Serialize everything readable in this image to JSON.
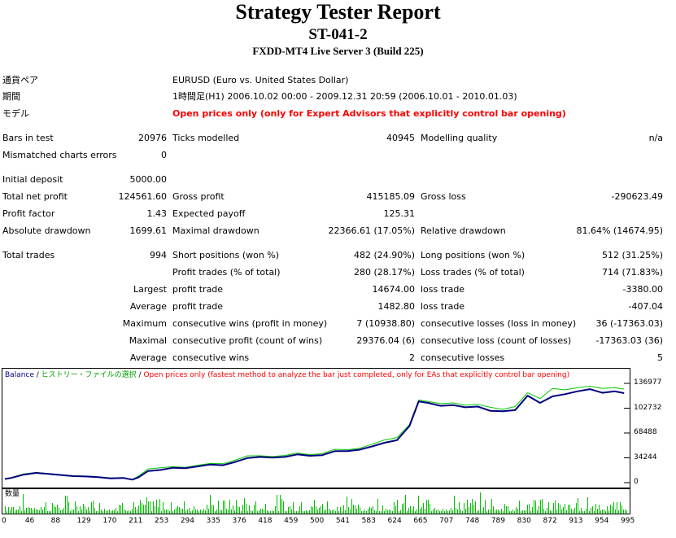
{
  "header": {
    "title": "Strategy Tester Report",
    "subtitle": "ST-041-2",
    "server": "FXDD-MT4 Live Server 3 (Build 225)"
  },
  "info": {
    "symbol_label": "通貨ペア",
    "symbol_value": "EURUSD (Euro vs. United States Dollar)",
    "period_label": "期間",
    "period_value": "1時間足(H1) 2006.10.02 00:00 - 2009.12.31 20:59 (2006.10.01 - 2010.01.03)",
    "model_label": "モデル",
    "model_value": "Open prices only (only for Expert Advisors that explicitly control bar opening)"
  },
  "stats": {
    "bars_label": "Bars in test",
    "bars_value": "20976",
    "ticks_label": "Ticks modelled",
    "ticks_value": "40945",
    "quality_label": "Modelling quality",
    "quality_value": "n/a",
    "mismatch_label": "Mismatched charts errors",
    "mismatch_value": "0",
    "deposit_label": "Initial deposit",
    "deposit_value": "5000.00",
    "net_label": "Total net profit",
    "net_value": "124561.60",
    "gross_profit_label": "Gross profit",
    "gross_profit_value": "415185.09",
    "gross_loss_label": "Gross loss",
    "gross_loss_value": "-290623.49",
    "pf_label": "Profit factor",
    "pf_value": "1.43",
    "payoff_label": "Expected payoff",
    "payoff_value": "125.31",
    "abs_dd_label": "Absolute drawdown",
    "abs_dd_value": "1699.61",
    "max_dd_label": "Maximal drawdown",
    "max_dd_value": "22366.61 (17.05%)",
    "rel_dd_label": "Relative drawdown",
    "rel_dd_value": "81.64% (14674.95)",
    "trades_label": "Total trades",
    "trades_value": "994",
    "short_label": "Short positions (won %)",
    "short_value": "482 (24.90%)",
    "long_label": "Long positions (won %)",
    "long_value": "512 (31.25%)",
    "profit_trades_label": "Profit trades (% of total)",
    "profit_trades_value": "280 (28.17%)",
    "loss_trades_label": "Loss trades (% of total)",
    "loss_trades_value": "714 (71.83%)",
    "largest_label": "Largest",
    "largest_profit_label": "profit trade",
    "largest_profit_value": "14674.00",
    "largest_loss_label": "loss trade",
    "largest_loss_value": "-3380.00",
    "average_label": "Average",
    "average_profit_label": "profit trade",
    "average_profit_value": "1482.80",
    "average_loss_label": "loss trade",
    "average_loss_value": "-407.04",
    "maximum_label": "Maximum",
    "max_cons_wins_label": "consecutive wins (profit in money)",
    "max_cons_wins_value": "7 (10938.80)",
    "max_cons_losses_label": "consecutive losses (loss in money)",
    "max_cons_losses_value": "36 (-17363.03)",
    "maximal_label": "Maximal",
    "maximal_profit_label": "consecutive profit (count of wins)",
    "maximal_profit_value": "29376.04 (6)",
    "maximal_loss_label": "consecutive loss (count of losses)",
    "maximal_loss_value": "-17363.03 (36)",
    "average2_label": "Average",
    "avg_cons_wins_label": "consecutive wins",
    "avg_cons_wins_value": "2",
    "avg_cons_losses_label": "consecutive losses",
    "avg_cons_losses_value": "5"
  },
  "chart_legend": {
    "balance": "Balance",
    "sep1": " / ",
    "history": "ヒストリー・ファイルの選択",
    "sep2": " / ",
    "mode": "Open prices only (fastest method to analyze the bar just completed, only for EAs that explicitly control bar opening)"
  },
  "volume_label": "数量",
  "colors": {
    "balance": "#00007f",
    "equity": "#00c800",
    "volume": "#00c000",
    "red": "#ff0000"
  },
  "chart_data": {
    "type": "line",
    "ylim": [
      0,
      136977
    ],
    "y_ticks": [
      "136977",
      "102732",
      "68488",
      "34244",
      "0"
    ],
    "x_ticks": [
      "0",
      "46",
      "88",
      "129",
      "170",
      "211",
      "253",
      "294",
      "335",
      "376",
      "418",
      "459",
      "500",
      "541",
      "583",
      "624",
      "665",
      "707",
      "748",
      "789",
      "830",
      "872",
      "913",
      "954",
      "995"
    ],
    "series": [
      {
        "name": "Balance",
        "x": [
          0,
          10,
          30,
          50,
          70,
          90,
          110,
          130,
          150,
          170,
          190,
          205,
          215,
          230,
          250,
          270,
          290,
          310,
          330,
          350,
          370,
          390,
          410,
          430,
          450,
          470,
          490,
          510,
          530,
          550,
          570,
          590,
          610,
          630,
          650,
          665,
          680,
          700,
          720,
          740,
          760,
          780,
          800,
          820,
          840,
          860,
          880,
          900,
          920,
          940,
          960,
          980,
          995
        ],
        "y": [
          5000,
          6500,
          11000,
          13500,
          12000,
          10500,
          9000,
          8500,
          7500,
          6000,
          6500,
          4200,
          7500,
          16000,
          17500,
          20500,
          20000,
          22500,
          25000,
          24000,
          28500,
          34000,
          35500,
          34500,
          35500,
          39000,
          37000,
          38000,
          43500,
          43500,
          45500,
          50000,
          55000,
          58500,
          78000,
          112000,
          110000,
          106000,
          107000,
          104000,
          105000,
          99000,
          98500,
          100000,
          120000,
          110000,
          119000,
          122000,
          126000,
          129000,
          124000,
          126000,
          123500
        ]
      },
      {
        "name": "Equity",
        "x": [
          0,
          10,
          30,
          50,
          70,
          90,
          110,
          130,
          150,
          170,
          190,
          205,
          215,
          230,
          250,
          270,
          290,
          310,
          330,
          350,
          370,
          390,
          410,
          430,
          450,
          470,
          490,
          510,
          530,
          550,
          570,
          590,
          610,
          630,
          650,
          665,
          680,
          700,
          720,
          740,
          760,
          780,
          800,
          820,
          840,
          860,
          880,
          900,
          920,
          940,
          960,
          980,
          995
        ],
        "y": [
          5000,
          7000,
          12000,
          14000,
          12500,
          11000,
          9500,
          9000,
          8000,
          6500,
          7000,
          4500,
          9000,
          19000,
          20500,
          22000,
          21000,
          24000,
          26500,
          26000,
          31000,
          37000,
          37000,
          36000,
          37500,
          41000,
          38500,
          40000,
          46000,
          45500,
          47500,
          53000,
          59000,
          62000,
          80000,
          114000,
          112000,
          109000,
          110000,
          107000,
          108000,
          104000,
          101000,
          105000,
          124000,
          116000,
          130000,
          128000,
          131000,
          133000,
          130000,
          131000,
          129000
        ]
      }
    ]
  }
}
